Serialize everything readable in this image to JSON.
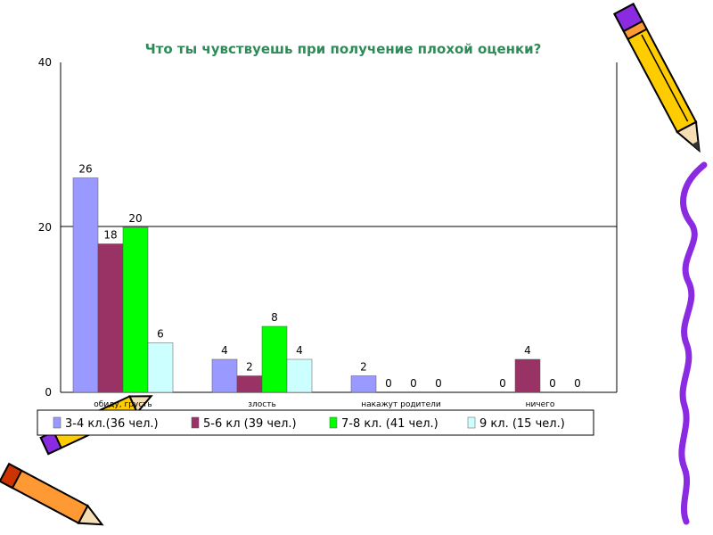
{
  "chart_data": {
    "type": "bar",
    "title": "Что ты чувствуешь при получение плохой оценки?",
    "categories": [
      "обиду, грусть",
      "злость",
      "накажут родители",
      "ничего"
    ],
    "series": [
      {
        "name": "3-4 кл.(36 чел.)",
        "values": [
          26,
          4,
          2,
          0
        ],
        "color": "#9999ff"
      },
      {
        "name": "5-6 кл (39 чел.)",
        "values": [
          18,
          2,
          0,
          4
        ],
        "color": "#993366"
      },
      {
        "name": "7-8 кл. (41 чел.)",
        "values": [
          20,
          8,
          0,
          0
        ],
        "color": "#00ff00"
      },
      {
        "name": "9 кл. (15 чел.)",
        "values": [
          6,
          4,
          0,
          0
        ],
        "color": "#ccffff"
      }
    ],
    "yticks": [
      "0",
      "20",
      "40"
    ],
    "ylim": [
      0,
      40
    ],
    "legend_position": "bottom",
    "grid": "horizontal at 20"
  },
  "colors": {
    "title": "#2e8b57",
    "pencil_body": "#ffcc00",
    "pencil_band": "#8a2be2",
    "ribbon": "#8a2be2"
  },
  "decorations": {
    "pencil_top_right": "pencil-icon",
    "pencil_bottom_left": "pencils-icon",
    "ribbon_right": "ribbon-squiggle"
  }
}
